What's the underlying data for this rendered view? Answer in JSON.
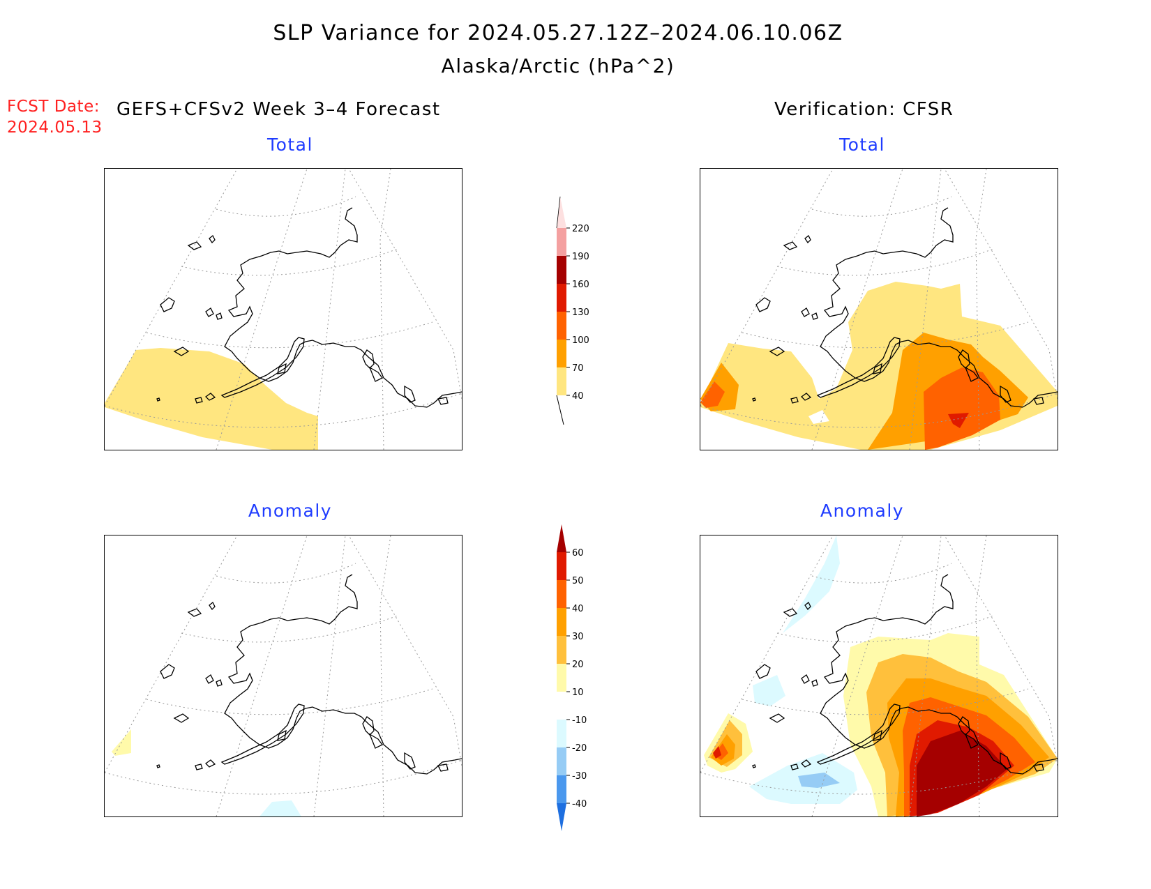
{
  "header": {
    "title": "SLP Variance for 2024.05.27.12Z–2024.06.10.06Z",
    "subtitle": "Alaska/Arctic (hPa^2)"
  },
  "forecast_info": {
    "label": "FCST Date:",
    "date": "2024.05.13"
  },
  "columns": {
    "left": "GEFS+CFSv2 Week 3–4 Forecast",
    "right": "Verification: CFSR"
  },
  "panels": {
    "forecast_total_label": "Total",
    "verification_total_label": "Total",
    "forecast_anomaly_label": "Anomaly",
    "verification_anomaly_label": "Anomaly"
  },
  "colorbars": {
    "total": {
      "ticks": [
        "40",
        "70",
        "100",
        "130",
        "160",
        "190",
        "220"
      ],
      "colors": [
        "#ffe680",
        "#ffa000",
        "#ff6200",
        "#e01a00",
        "#a50000",
        "#f4a0a0",
        "#fde0e0"
      ]
    },
    "anomaly": {
      "ticks": [
        "-40",
        "-30",
        "-20",
        "-10",
        "10",
        "20",
        "30",
        "40",
        "50",
        "60"
      ],
      "colors": [
        "#1e6fe0",
        "#4a98ee",
        "#96ccf5",
        "#dcfaff",
        "#ffffff",
        "#fffaaa",
        "#ffc03c",
        "#ffa000",
        "#ff6200",
        "#e01a00",
        "#a50000"
      ]
    }
  }
}
